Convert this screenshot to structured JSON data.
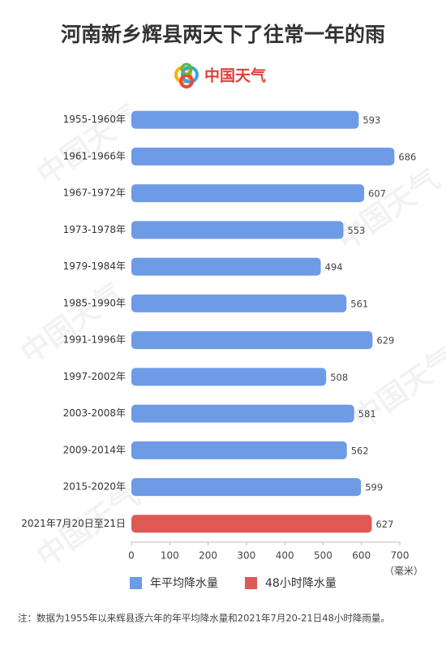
{
  "chart_data": {
    "type": "hbar",
    "title": "河南新乡辉县两天下了往常一年的雨",
    "brand": "中国天气",
    "watermark": "中国天气",
    "categories": [
      "1955-1960年",
      "1961-1966年",
      "1967-1972年",
      "1973-1978年",
      "1979-1984年",
      "1985-1990年",
      "1991-1996年",
      "1997-2002年",
      "2003-2008年",
      "2009-2014年",
      "2015-2020年",
      "2021年7月20日至21日"
    ],
    "series": [
      {
        "name": "年平均降水量",
        "color": "#6e9be6",
        "values": [
          593,
          686,
          607,
          553,
          494,
          561,
          629,
          508,
          581,
          562,
          599,
          null
        ]
      },
      {
        "name": "48小时降水量",
        "color": "#e05a55",
        "values": [
          null,
          null,
          null,
          null,
          null,
          null,
          null,
          null,
          null,
          null,
          null,
          627
        ]
      }
    ],
    "xlim": [
      0,
      700
    ],
    "xticks": [
      0,
      100,
      200,
      300,
      400,
      500,
      600,
      700
    ],
    "x_unit": "（毫米）",
    "grid": false,
    "legend": "bottom",
    "note": "注：数据为1955年以来辉县逐六年的年平均降水量和2021年7月20-21日48小时降雨量。"
  }
}
